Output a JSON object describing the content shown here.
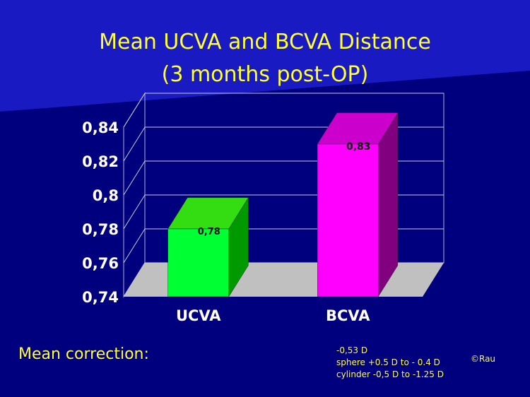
{
  "slide": {
    "title_line1": "Mean UCVA and BCVA Distance",
    "title_line2": "(3 months post-OP)",
    "footer_label": "Mean correction:",
    "footer_notes": [
      "-0,53 D",
      "sphere +0.5 D to - 0.4 D",
      "cylinder -0,5 D to -1.25 D"
    ],
    "copyright": "©Rau"
  },
  "colors": {
    "background": "#00007f",
    "title": "#ffff33",
    "ucva_front": "#00ff33",
    "ucva_side": "#009900",
    "ucva_top": "#33dd11",
    "bcva_front": "#ff00ff",
    "bcva_side": "#800080",
    "bcva_top": "#cc00cc",
    "floor": "#c0c0c0"
  },
  "chart_data": {
    "type": "bar",
    "categories": [
      "UCVA",
      "BCVA"
    ],
    "values": [
      0.78,
      0.83
    ],
    "data_labels": [
      "0,78",
      "0,83"
    ],
    "ylim": [
      0.74,
      0.84
    ],
    "yticks": [
      "0,74",
      "0,76",
      "0,78",
      "0,8",
      "0,82",
      "0,84"
    ],
    "ytick_values": [
      0.74,
      0.76,
      0.78,
      0.8,
      0.82,
      0.84
    ],
    "grid": true,
    "three_d": true
  }
}
